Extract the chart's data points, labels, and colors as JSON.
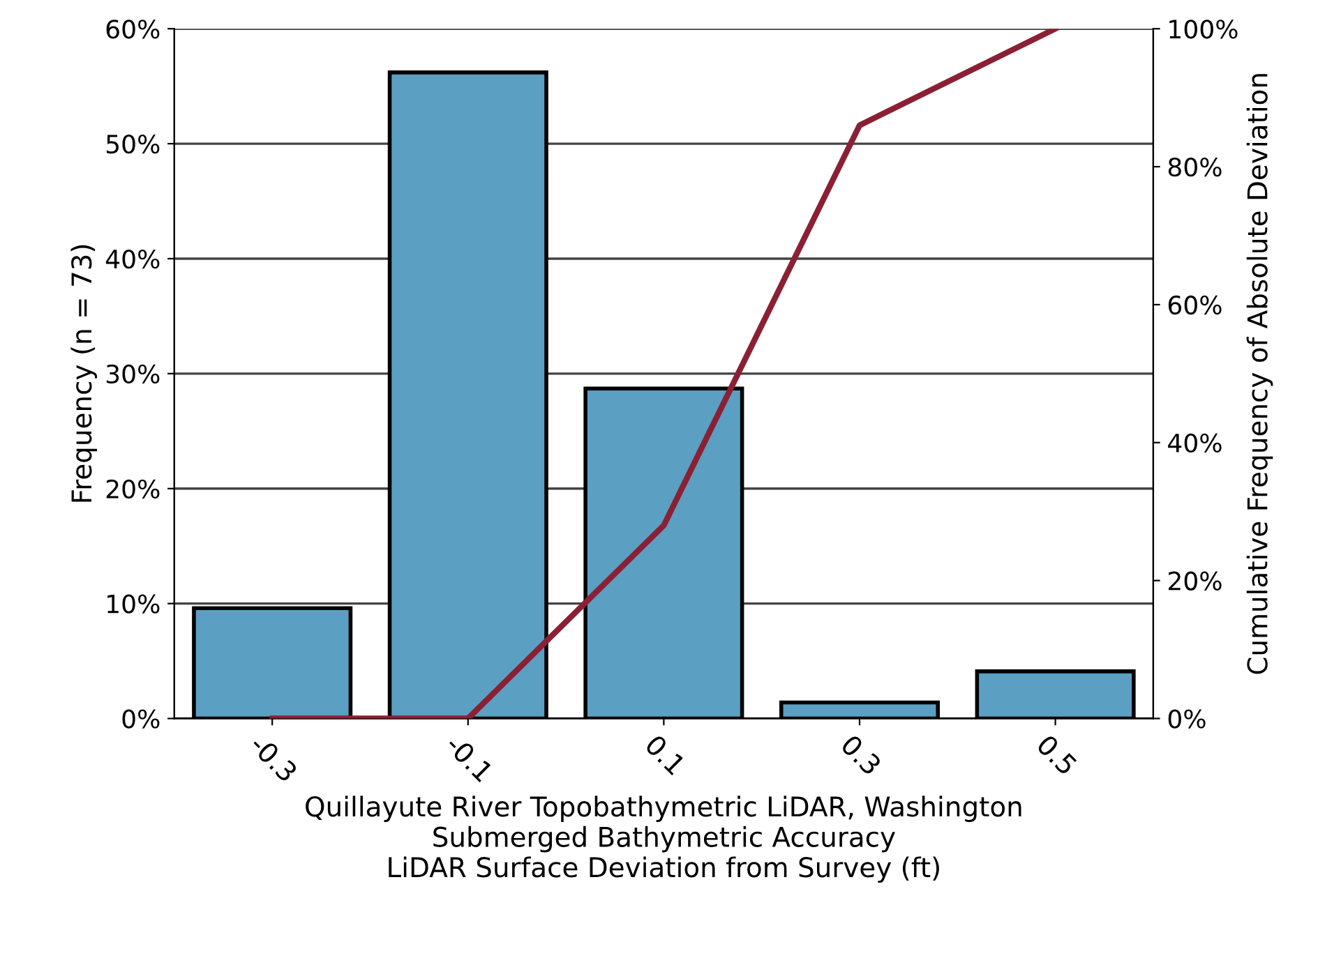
{
  "chart_data": {
    "type": "bar",
    "xlabel": "Quillayute River Topobathymetric LiDAR, Washington\nSubmerged Bathymetric Accuracy\nLiDAR Surface Deviation from Survey (ft)",
    "ylabel": "Frequency (n = 73)",
    "y2label": "Cumulative Frequency of Absolute Deviation",
    "categories": [
      "-0.3",
      "-0.1",
      "0.1",
      "0.3",
      "0.5"
    ],
    "series": [
      {
        "color": "#5b9fc2",
        "values": [
          9.6,
          56.2,
          28.7,
          1.4,
          4.1
        ]
      },
      {
        "type": "line",
        "axis": "y2",
        "color": "#8b2035",
        "values": [
          0,
          0,
          28,
          86,
          100
        ]
      }
    ],
    "ylim": [
      0,
      60
    ],
    "yticks": [
      {
        "value": 0,
        "label": "0%"
      },
      {
        "value": 10,
        "label": "10%"
      },
      {
        "value": 20,
        "label": "20%"
      },
      {
        "value": 30,
        "label": "30%"
      },
      {
        "value": 40,
        "label": "40%"
      },
      {
        "value": 50,
        "label": "50%"
      },
      {
        "value": 60,
        "label": "60%"
      }
    ],
    "y2lim": [
      0,
      100
    ],
    "y2ticks": [
      {
        "value": 0,
        "label": "0%"
      },
      {
        "value": 20,
        "label": "20%"
      },
      {
        "value": 40,
        "label": "40%"
      },
      {
        "value": 60,
        "label": "60%"
      },
      {
        "value": 80,
        "label": "80%"
      },
      {
        "value": 100,
        "label": "100%"
      }
    ],
    "grid": "y",
    "marker": "none",
    "line_style": "solid"
  }
}
